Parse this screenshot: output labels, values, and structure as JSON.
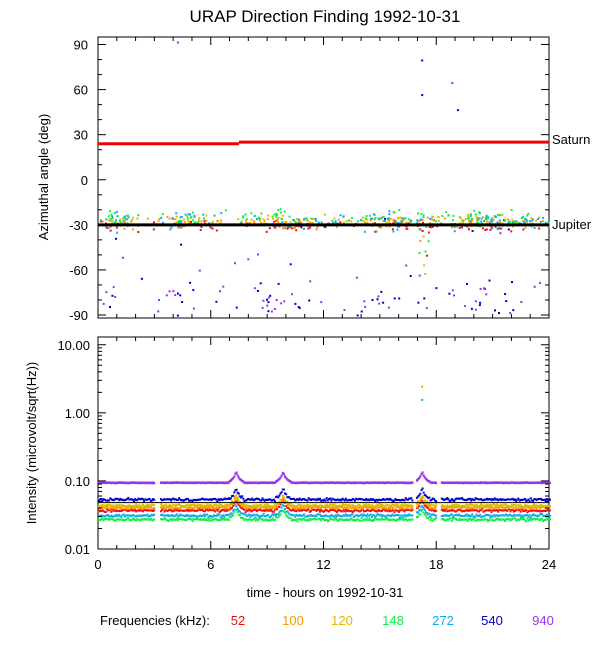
{
  "title": "URAP Direction Finding  1992-10-31",
  "xlabel": "time - hours on 1992-10-31",
  "legend_label": "Frequencies (kHz):",
  "frequencies": [
    {
      "label": "52",
      "color": "#ee1111"
    },
    {
      "label": "100",
      "color": "#ff9900"
    },
    {
      "label": "120",
      "color": "#ddbb00"
    },
    {
      "label": "148",
      "color": "#11ee44"
    },
    {
      "label": "272",
      "color": "#11aaee"
    },
    {
      "label": "540",
      "color": "#0000cc"
    },
    {
      "label": "940",
      "color": "#9933ee"
    }
  ],
  "chart_data": [
    {
      "type": "scatter",
      "title": "URAP Direction Finding  1992-10-31",
      "ylabel": "Azimuthal angle (deg)",
      "xlabel": "",
      "xlim": [
        0,
        24
      ],
      "ylim": [
        -92,
        95
      ],
      "xticks": [
        "0",
        "6",
        "12",
        "18",
        "24"
      ],
      "yticks": [
        "90",
        "60",
        "30",
        "0",
        "-30",
        "-60",
        "-90"
      ],
      "ytick_values": [
        90,
        60,
        30,
        0,
        -30,
        -60,
        -90
      ],
      "reference_lines": [
        {
          "name": "Saturn",
          "label": "Saturn",
          "color": "#ee0000",
          "segments": [
            [
              0,
              7.5,
              24
            ],
            [
              7.5,
              24,
              25
            ]
          ]
        },
        {
          "name": "Jupiter",
          "label": "Jupiter",
          "color": "#000000",
          "segments": [
            [
              0,
              24,
              -30
            ]
          ]
        }
      ],
      "series": [
        {
          "name": "52",
          "typical_value": -30,
          "spread": 5
        },
        {
          "name": "100",
          "typical_value": -28,
          "spread": 6
        },
        {
          "name": "120",
          "typical_value": -27,
          "spread": 6
        },
        {
          "name": "148",
          "typical_value": -25,
          "spread": 8
        },
        {
          "name": "272",
          "typical_value": -27,
          "spread": 9
        },
        {
          "name": "540",
          "typical_value": -78,
          "spread": 12,
          "outliers": [
            [
              17.2,
              80
            ],
            [
              17.2,
              57
            ],
            [
              19.1,
              47
            ]
          ]
        },
        {
          "name": "940",
          "typical_value": -80,
          "spread": 10,
          "outliers": [
            [
              4.2,
              92
            ],
            [
              18.8,
              65
            ]
          ]
        }
      ]
    },
    {
      "type": "scatter",
      "title": "",
      "ylabel": "Intensity (microvolt/sqrt(Hz))",
      "xlabel": "time - hours on 1992-10-31",
      "xlim": [
        0,
        24
      ],
      "yscale": "log",
      "ylim": [
        0.01,
        13
      ],
      "xticks": [
        "0",
        "6",
        "12",
        "18",
        "24"
      ],
      "yticks": [
        "10.00",
        "1.00",
        "0.10",
        "0.01"
      ],
      "ytick_values": [
        10,
        1,
        0.1,
        0.01
      ],
      "reference_lines": [
        {
          "name": "baseline",
          "label": "",
          "color": "#000000",
          "segments": [
            [
              0,
              24,
              0.048
            ]
          ]
        }
      ],
      "gaps_hours": [
        [
          3.0,
          3.3
        ],
        [
          16.7,
          16.9
        ],
        [
          18.0,
          18.2
        ]
      ],
      "spike_hours": [
        7.3,
        9.8,
        17.2
      ],
      "series": [
        {
          "name": "52",
          "typical_value": 0.038
        },
        {
          "name": "100",
          "typical_value": 0.042
        },
        {
          "name": "120",
          "typical_value": 0.045
        },
        {
          "name": "148",
          "typical_value": 0.028
        },
        {
          "name": "272",
          "typical_value": 0.032
        },
        {
          "name": "540",
          "typical_value": 0.055
        },
        {
          "name": "940",
          "typical_value": 0.098
        }
      ],
      "annotations": [
        {
          "x": 17.2,
          "y": 2.5,
          "series": "100"
        },
        {
          "x": 17.2,
          "y": 1.6,
          "series": "272"
        }
      ]
    }
  ]
}
